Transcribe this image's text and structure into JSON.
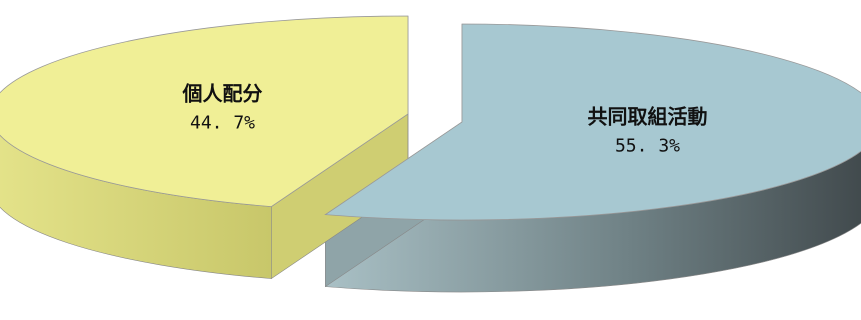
{
  "chart_data": {
    "type": "pie",
    "style": "3d-exploded",
    "slices": [
      {
        "label": "共同取組活動",
        "value": 55.3,
        "value_label": "55. 3%",
        "color": "#a7c8d1",
        "side_color_light": "#93a8ac",
        "side_color_dark": "#4a5559"
      },
      {
        "label": "個人配分",
        "value": 44.7,
        "value_label": "44. 7%",
        "color": "#f0ef96",
        "side_color_light": "#d7d67a",
        "side_color_dark": "#b9b85e"
      }
    ],
    "legend": "none"
  }
}
